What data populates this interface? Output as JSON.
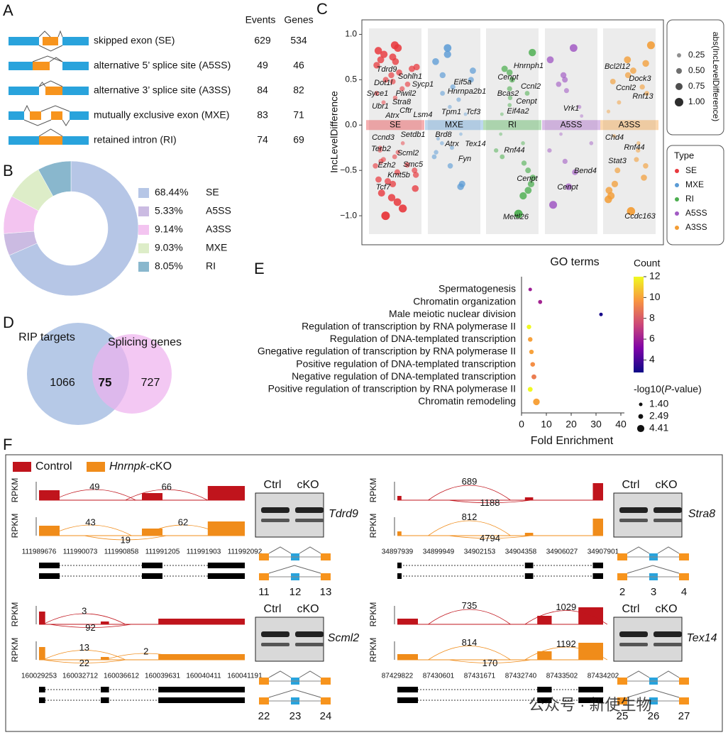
{
  "panel_labels": [
    "A",
    "B",
    "C",
    "D",
    "E",
    "F"
  ],
  "splicing_table": {
    "headers": [
      "Events",
      "Genes"
    ],
    "rows": [
      {
        "label": "skipped exon (SE)",
        "events": 629,
        "genes": 534
      },
      {
        "label": "alternative 5’ splice site (A5SS)",
        "events": 49,
        "genes": 46
      },
      {
        "label": "alternative 3’ splice site (A3SS)",
        "events": 84,
        "genes": 82
      },
      {
        "label": "mutually exclusive exon (MXE)",
        "events": 83,
        "genes": 71
      },
      {
        "label": "retained intron (RI)",
        "events": 74,
        "genes": 69
      }
    ]
  },
  "chart_data": [
    {
      "type": "pie",
      "donut": true,
      "categories": [
        "SE",
        "A5SS",
        "A3SS",
        "MXE",
        "RI"
      ],
      "values": [
        68.44,
        5.33,
        9.14,
        9.03,
        8.05
      ],
      "value_labels": [
        "68.44%",
        "5.33%",
        "9.14%",
        "9.03%",
        "8.05%"
      ],
      "colors": [
        "#b6c6e6",
        "#cbbbe2",
        "#f3c4f0",
        "#ddedc8",
        "#89b7cd"
      ]
    },
    {
      "type": "strip",
      "y_label": "IncLevelDifference",
      "ylim": [
        -1.32,
        1.16
      ],
      "yticks": [
        {
          "value": -1,
          "label": "−1.0"
        },
        {
          "value": -0.5,
          "label": "−0.5"
        },
        {
          "value": 0,
          "label": "0.0"
        },
        {
          "value": 0.5,
          "label": "0.5"
        },
        {
          "value": 1,
          "label": "1.0"
        }
      ],
      "series": [
        {
          "name": "SE",
          "color": "#e8383d",
          "values": [
            0.88,
            0.85,
            0.82,
            0.78,
            0.75,
            0.7,
            0.66,
            0.62,
            0.58,
            0.55,
            0.5,
            0.45,
            0.4,
            0.35,
            0.3,
            0.25,
            -0.2,
            -0.25,
            -0.3,
            -0.35,
            -0.4,
            -0.45,
            -0.5,
            -0.55,
            -0.6,
            -0.65,
            -0.7,
            -0.75,
            -0.8,
            -0.85,
            -0.92,
            -1.0,
            0.72,
            0.64,
            0.48,
            -0.38,
            -0.52,
            -0.62,
            -0.28,
            -0.44
          ],
          "labels": [
            "Tdrd9",
            "Sohlh1",
            "Dot1l",
            "Sycp1",
            "Syce1",
            "Piwil2",
            "Stra8",
            "Ubr1",
            "Cftr",
            "Atrx",
            "Lsm4",
            "Ccnd3",
            "Setdb1",
            "Terb2",
            "Scml2",
            "Ezh2",
            "Smc5",
            "Kmt5b",
            "Tcf7"
          ]
        },
        {
          "name": "MXE",
          "color": "#5b9bd5",
          "values": [
            0.85,
            0.78,
            0.7,
            0.6,
            0.55,
            0.5,
            0.42,
            0.35,
            0.28,
            0.2,
            0.12,
            -0.1,
            -0.15,
            -0.2,
            -0.25,
            -0.3,
            -0.35,
            -0.45,
            -0.65,
            -0.68
          ],
          "labels": [
            "Eif5a",
            "Hnrnpa2b1",
            "Tpm1",
            "Tcf3",
            "Brd8",
            "Atrx",
            "Tex14",
            "Fyn"
          ]
        },
        {
          "name": "RI",
          "color": "#4cae4f",
          "values": [
            0.8,
            0.62,
            0.58,
            0.5,
            0.4,
            0.35,
            0.3,
            0.22,
            0.12,
            -0.1,
            -0.2,
            -0.28,
            -0.35,
            -0.42,
            -0.5,
            -0.58,
            -0.65,
            -0.72,
            -0.78,
            -0.98
          ],
          "labels": [
            "Hnrnph1",
            "Cenpt",
            "Ccnl2",
            "Bcas2",
            "Cenpt",
            "Eif4a2",
            "Rnf44",
            "Cenpt",
            "Mettl26"
          ]
        },
        {
          "name": "A5SS",
          "color": "#a25bc4",
          "values": [
            0.85,
            0.72,
            0.55,
            0.5,
            0.45,
            0.38,
            0.2,
            0.1,
            -0.1,
            -0.2,
            -0.28,
            -0.4,
            -0.52,
            -0.68,
            -0.88
          ],
          "labels": [
            "Vrk1",
            "Bend4",
            "Cenpt"
          ]
        },
        {
          "name": "A3SS",
          "color": "#f39c34",
          "values": [
            0.88,
            0.72,
            0.68,
            0.6,
            0.55,
            0.48,
            0.42,
            0.35,
            0.25,
            0.15,
            -0.12,
            -0.2,
            -0.28,
            -0.38,
            -0.45,
            -0.5,
            -0.58,
            -0.65,
            -0.72,
            -0.78,
            -0.82,
            -0.95
          ],
          "labels": [
            "Bcl2l12",
            "Dock3",
            "Ccnl2",
            "Rnf13",
            "Chd4",
            "Rnf44",
            "Stat3",
            "Ccdc163"
          ]
        }
      ],
      "size_title": "abs(IncLevelDifference)",
      "size_ticks": [
        {
          "value": 0.25,
          "label": "0.25"
        },
        {
          "value": 0.5,
          "label": "0.50"
        },
        {
          "value": 0.75,
          "label": "0.75"
        },
        {
          "value": 1,
          "label": "1.00"
        }
      ],
      "legend_title": "Type"
    },
    {
      "type": "dot",
      "title": "GO terms",
      "x_label": "Fold Enrichment",
      "categories": [
        "Spermatogenesis",
        "Chromatin organization",
        "Male meiotic nuclear division",
        "Regulation of transcription by RNA polymerase II",
        "Regulation of DNA-templated transcription",
        "Gnegative regulation of transcription by RNA polymerase II",
        "Positive regulation of DNA-templated transcription",
        "Negative regulation of DNA-templated transcription",
        "Positive regulation of transcription by RNA polymerase II",
        "Chromatin remodeling"
      ],
      "values": [
        3.5,
        7.5,
        32,
        3,
        3.5,
        4,
        4.5,
        5,
        3.5,
        6
      ],
      "counts": [
        6,
        6.2,
        3,
        12,
        10,
        10,
        9.5,
        9,
        12,
        10
      ],
      "neglog_p": [
        1.4,
        1.8,
        1.4,
        2.2,
        2.3,
        2.2,
        2.3,
        2.5,
        2.5,
        4.0
      ],
      "xlim": [
        0,
        40
      ],
      "xticks": [
        0,
        10,
        20,
        30,
        40
      ],
      "color_title": "Count",
      "clim": [
        2.8,
        12
      ],
      "color_ticks": [
        4,
        6,
        8,
        10,
        12
      ],
      "size_title": [
        "-log10(",
        "P",
        "-value)"
      ],
      "size_ticks": [
        {
          "value": 1.4,
          "label": "1.40"
        },
        {
          "value": 2.49,
          "label": "2.49"
        },
        {
          "value": 4.41,
          "label": "4.41"
        }
      ]
    }
  ],
  "venn": {
    "left_label": "RIP targets",
    "right_label": "Splicing genes",
    "left_only": 1066,
    "overlap": 75,
    "right_only": 727
  },
  "panel_f": {
    "legend": {
      "control": "Control",
      "ko_gene": "Hnrnpk",
      "ko_suffix": "-cKO"
    },
    "y_label": "RPKM",
    "ctrl_label": "Ctrl",
    "ko_label": "cKO",
    "examples": [
      {
        "gene": "Tdrd9",
        "control_junctions": [
          49,
          66
        ],
        "ko_junctions": [
          43,
          19,
          62
        ],
        "coordinates": [
          "111989676",
          "111990073",
          "111990858",
          "111991205",
          "111991903",
          "111992092"
        ],
        "exons": [
          11,
          12,
          13
        ]
      },
      {
        "gene": "Stra8",
        "control_junctions": [
          689,
          1188
        ],
        "ko_junctions": [
          812,
          4794
        ],
        "coordinates": [
          "34897939",
          "34899949",
          "34902153",
          "34904358",
          "34906027",
          "34907901"
        ],
        "exons": [
          2,
          3,
          4
        ]
      },
      {
        "gene": "Scml2",
        "control_junctions": [
          3,
          92
        ],
        "ko_junctions": [
          13,
          22,
          2
        ],
        "coordinates": [
          "160029253",
          "160032712",
          "160036612",
          "160039631",
          "160040411",
          "160041191"
        ],
        "exons": [
          22,
          23,
          24
        ]
      },
      {
        "gene": "Tex14",
        "control_junctions": [
          735,
          1029
        ],
        "ko_junctions": [
          814,
          1192,
          170
        ],
        "coordinates": [
          "87429822",
          "87430601",
          "87431671",
          "87432740",
          "87433502",
          "87434202"
        ],
        "exons": [
          25,
          26,
          27
        ]
      }
    ]
  },
  "watermark": "公众号 · 新使生物"
}
